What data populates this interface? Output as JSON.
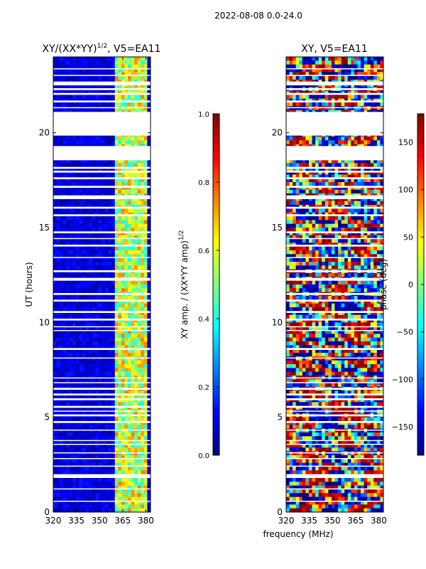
{
  "suptitle": "2022-08-08 0.0-24.0",
  "xlabel_shared": "frequency (MHz)",
  "colors": {
    "jet": [
      "#00007f",
      "#0000ff",
      "#007fff",
      "#00ffff",
      "#7fff7f",
      "#ffff00",
      "#ff7f00",
      "#ff0000",
      "#7f0000"
    ]
  },
  "chart_data": [
    {
      "type": "heatmap",
      "title": "XY/(XX*YY)^{1/2}, V5=EA11",
      "title_main": "XY/(XX*YY)",
      "title_sup": "1/2",
      "title_tail": ", V5=EA11",
      "xlabel": "",
      "ylabel": "UT (hours)",
      "xlim": [
        320,
        383
      ],
      "ylim": [
        0,
        24
      ],
      "xticks": [
        320,
        335,
        350,
        365,
        380
      ],
      "yticks": [
        0,
        5,
        10,
        15,
        20
      ],
      "bright_channels_mhz": [
        [
          360,
          363.5
        ],
        [
          364.5,
          368
        ],
        [
          369,
          371.5
        ],
        [
          373,
          376
        ],
        [
          377,
          380
        ]
      ],
      "background": "low amplitude (~0.05-0.1) with bright vertical bands 0.4-0.7",
      "colorbar": {
        "label": "XY amp. / (XX*YY amp)^{1/2}",
        "label_main": "XY amp. / (XX*YY amp)",
        "label_sup": "1/2",
        "range": [
          0.0,
          1.0
        ],
        "ticks": [
          "0.0",
          "0.2",
          "0.4",
          "0.6",
          "0.8",
          "1.0"
        ]
      }
    },
    {
      "type": "heatmap",
      "title": "XY, V5=EA11",
      "xlabel": "frequency (MHz)",
      "ylabel": "",
      "xlim": [
        320,
        383
      ],
      "ylim": [
        0,
        24
      ],
      "xticks": [
        320,
        335,
        350,
        365,
        380
      ],
      "yticks": [
        0,
        5,
        10,
        15,
        20
      ],
      "background": "noisy phase, values spread over full range",
      "colorbar": {
        "label": "phase (deg)",
        "range": [
          -180,
          180
        ],
        "ticks": [
          "−150",
          "−100",
          "−50",
          "0",
          "50",
          "100",
          "150"
        ]
      }
    }
  ],
  "flagged_gaps_ut": [
    [
      0.55,
      0.6
    ],
    [
      1.2,
      1.25
    ],
    [
      1.8,
      2.0
    ],
    [
      2.4,
      2.45
    ],
    [
      2.8,
      2.85
    ],
    [
      3.1,
      3.15
    ],
    [
      3.55,
      3.6
    ],
    [
      3.75,
      3.8
    ],
    [
      4.3,
      4.35
    ],
    [
      4.7,
      4.8
    ],
    [
      5.05,
      5.15
    ],
    [
      5.3,
      5.35
    ],
    [
      5.5,
      5.6
    ],
    [
      5.9,
      6.0
    ],
    [
      6.15,
      6.25
    ],
    [
      6.45,
      6.55
    ],
    [
      6.8,
      6.85
    ],
    [
      7.05,
      7.1
    ],
    [
      8.1,
      8.15
    ],
    [
      8.55,
      8.65
    ],
    [
      9.55,
      9.6
    ],
    [
      9.75,
      9.8
    ],
    [
      10.1,
      10.2
    ],
    [
      10.5,
      10.6
    ],
    [
      11.1,
      11.2
    ],
    [
      11.45,
      11.55
    ],
    [
      12.2,
      12.35
    ],
    [
      12.65,
      12.75
    ],
    [
      13.4,
      13.45
    ],
    [
      14.0,
      14.1
    ],
    [
      14.4,
      14.45
    ],
    [
      14.7,
      14.8
    ],
    [
      15.6,
      15.7
    ],
    [
      16.0,
      16.1
    ],
    [
      16.5,
      16.7
    ],
    [
      17.1,
      17.2
    ],
    [
      17.55,
      17.65
    ],
    [
      17.9,
      18.0
    ],
    [
      18.1,
      18.2
    ],
    [
      18.55,
      19.3
    ],
    [
      19.85,
      21.1
    ],
    [
      21.3,
      21.35
    ],
    [
      21.6,
      21.7
    ],
    [
      22.0,
      22.1
    ],
    [
      22.25,
      22.35
    ],
    [
      22.5,
      22.7
    ],
    [
      23.0,
      23.05
    ],
    [
      23.35,
      23.4
    ]
  ]
}
